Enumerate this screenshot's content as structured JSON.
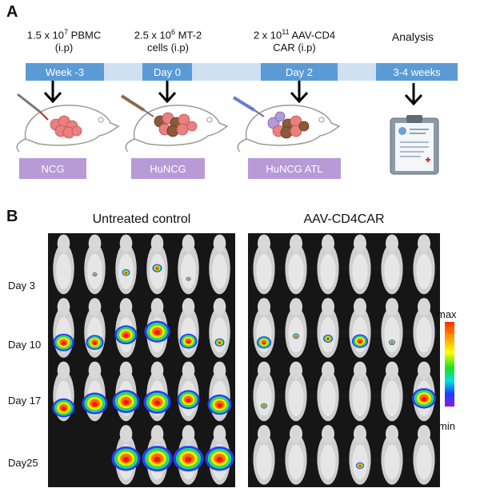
{
  "panel_a": {
    "letter": "A",
    "steps": [
      {
        "line1_pre": "1.5 x 10",
        "line1_exp": "7",
        "line1_post": " PBMC",
        "line2": "(i.p)",
        "timeline_label": "Week -3",
        "strain": "NCG"
      },
      {
        "line1_pre": "2.5 x 10",
        "line1_exp": "6",
        "line1_post": " MT-2",
        "line2": "cells (i.p)",
        "timeline_label": "Day 0",
        "strain": "HuNCG"
      },
      {
        "line1_pre": "2 x 10",
        "line1_exp": "11",
        "line1_post": " AAV-CD4",
        "line2": "CAR (i.p)",
        "timeline_label": "Day 2",
        "strain": "HuNCG ATL"
      },
      {
        "line1_pre": "Analysis",
        "line1_exp": "",
        "line1_post": "",
        "line2": "",
        "timeline_label": "3-4 weeks",
        "strain": ""
      }
    ]
  },
  "panel_b": {
    "letter": "B",
    "group_titles": [
      "Untreated control",
      "AAV-CD4CAR"
    ],
    "day_labels": [
      "Day 3",
      "Day 10",
      "Day 17",
      "Day25"
    ],
    "scale": {
      "max_label": "max",
      "min_label": "min",
      "colors": [
        "#ff2b00",
        "#ff9a00",
        "#ffff00",
        "#22dd22",
        "#00e0e0",
        "#1e3cff",
        "#8a1cd8"
      ]
    }
  }
}
